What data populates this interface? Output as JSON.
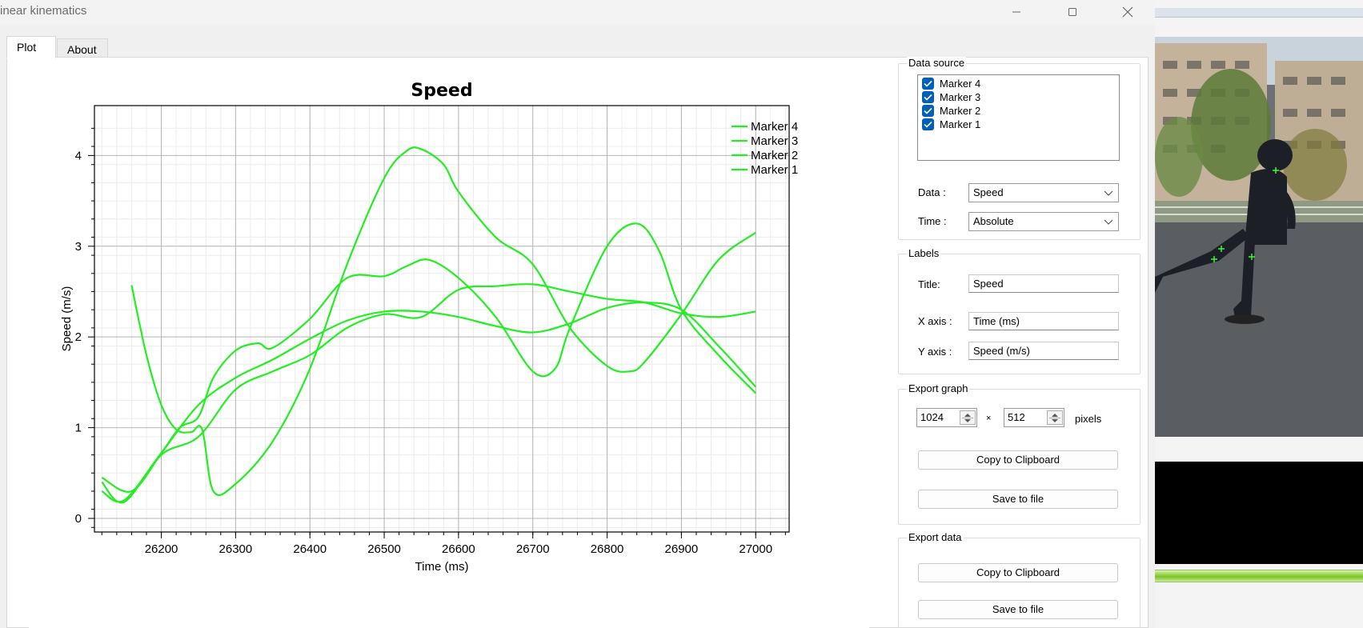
{
  "window": {
    "title": "inear kinematics",
    "controls": {
      "minimize_icon": "minimize-icon",
      "maximize_icon": "maximize-icon",
      "close_icon": "close-icon"
    }
  },
  "tabs": [
    {
      "label": "Plot",
      "active": true
    },
    {
      "label": "About",
      "active": false
    }
  ],
  "chart_data": {
    "type": "line",
    "title": "Speed",
    "xlabel": "Time (ms)",
    "ylabel": "Speed (m/s)",
    "xlim": [
      26110,
      27045
    ],
    "ylim": [
      -0.15,
      4.55
    ],
    "xticks": [
      26200,
      26300,
      26400,
      26500,
      26600,
      26700,
      26800,
      26900,
      27000
    ],
    "yticks": [
      0,
      1,
      2,
      3,
      4
    ],
    "grid": true,
    "legend_position": "top-right",
    "line_color": "#22ee22",
    "series": [
      {
        "name": "Marker 4",
        "x": [
          26120,
          26150,
          26200,
          26250,
          26300,
          26350,
          26400,
          26450,
          26500,
          26550,
          26600,
          26650,
          26700,
          26750,
          26800,
          26850,
          26900,
          26950,
          27000
        ],
        "y": [
          0.3,
          0.2,
          0.72,
          1.25,
          1.55,
          1.75,
          1.98,
          2.18,
          2.28,
          2.28,
          2.22,
          2.12,
          2.05,
          2.15,
          2.32,
          2.38,
          2.3,
          1.9,
          1.45
        ]
      },
      {
        "name": "Marker 3",
        "x": [
          26120,
          26150,
          26200,
          26250,
          26300,
          26350,
          26400,
          26450,
          26500,
          26550,
          26600,
          26650,
          26700,
          26750,
          26800,
          26850,
          26900,
          26950,
          27000
        ],
        "y": [
          0.4,
          0.18,
          0.7,
          0.9,
          1.42,
          1.62,
          1.8,
          2.1,
          2.25,
          2.22,
          2.52,
          2.56,
          2.58,
          2.5,
          2.42,
          2.38,
          2.26,
          2.22,
          2.28
        ]
      },
      {
        "name": "Marker 2",
        "x": [
          26120,
          26160,
          26200,
          26225,
          26250,
          26270,
          26300,
          26330,
          26350,
          26400,
          26450,
          26500,
          26530,
          26560,
          26600,
          26650,
          26700,
          26730,
          26750,
          26800,
          26840,
          26870,
          26900,
          26950,
          27000
        ],
        "y": [
          0.45,
          0.3,
          0.72,
          1.0,
          1.12,
          1.55,
          1.85,
          1.93,
          1.88,
          2.2,
          2.65,
          2.67,
          2.78,
          2.85,
          2.65,
          2.22,
          1.62,
          1.65,
          2.1,
          3.0,
          3.25,
          2.95,
          2.3,
          1.8,
          1.38
        ]
      },
      {
        "name": "Marker 1",
        "x": [
          26160,
          26180,
          26200,
          26220,
          26240,
          26255,
          26270,
          26300,
          26350,
          26400,
          26450,
          26500,
          26530,
          26550,
          26580,
          26600,
          26650,
          26700,
          26750,
          26800,
          26830,
          26850,
          26900,
          26950,
          27000
        ],
        "y": [
          2.57,
          1.8,
          1.25,
          0.98,
          0.95,
          0.98,
          0.3,
          0.38,
          0.85,
          1.65,
          2.8,
          3.75,
          4.05,
          4.07,
          3.9,
          3.6,
          3.1,
          2.8,
          2.1,
          1.68,
          1.62,
          1.72,
          2.25,
          2.85,
          3.15
        ]
      }
    ]
  },
  "panel": {
    "data_source": {
      "legend": "Data source",
      "items": [
        {
          "label": "Marker 4",
          "checked": true
        },
        {
          "label": "Marker 3",
          "checked": true
        },
        {
          "label": "Marker 2",
          "checked": true
        },
        {
          "label": "Marker 1",
          "checked": true
        }
      ],
      "data_label": "Data :",
      "data_value": "Speed",
      "time_label": "Time :",
      "time_value": "Absolute"
    },
    "labels": {
      "legend": "Labels",
      "title_label": "Title:",
      "title_value": "Speed",
      "xaxis_label": "X axis :",
      "xaxis_value": "Time (ms)",
      "yaxis_label": "Y axis :",
      "yaxis_value": "Speed (m/s)"
    },
    "export_graph": {
      "legend": "Export graph",
      "width": "1024",
      "times": "×",
      "height": "512",
      "unit": "pixels",
      "copy_label": "Copy to Clipboard",
      "save_label": "Save to file"
    },
    "export_data": {
      "legend": "Export data",
      "copy_label": "Copy to Clipboard",
      "save_label": "Save to file"
    }
  },
  "video": {
    "marker_color": "#33ff33"
  }
}
